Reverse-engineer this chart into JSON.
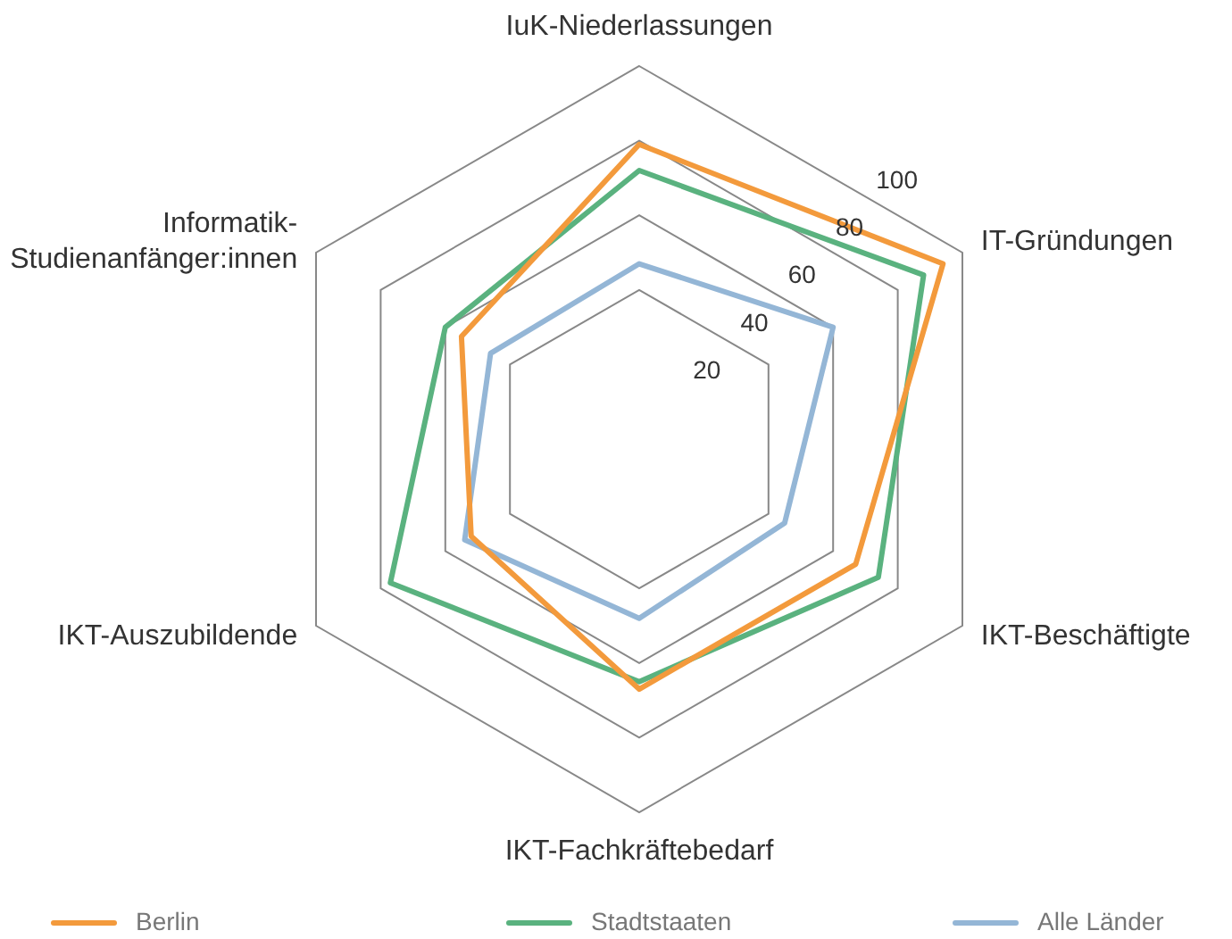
{
  "chart_data": {
    "type": "radar",
    "categories": [
      "IuK-Niederlassungen",
      "IT-Gründungen",
      "IKT-Beschäftigte",
      "IKT-Fachkräftebedarf",
      "IKT-Auszubildende",
      "Informatik-Studienanfänger:innen"
    ],
    "series": [
      {
        "name": "Berlin",
        "color": "#f39a3c",
        "values": [
          79,
          94,
          67,
          67,
          52,
          55
        ]
      },
      {
        "name": "Stadtstaaten",
        "color": "#5ab27f",
        "values": [
          72,
          88,
          74,
          65,
          77,
          60
        ]
      },
      {
        "name": "Alle Länder",
        "color": "#94b6d6",
        "values": [
          47,
          60,
          45,
          48,
          54,
          46
        ]
      }
    ],
    "ylim": [
      0,
      100
    ],
    "yticks": [
      20,
      40,
      60,
      80,
      100
    ],
    "grid": true,
    "legend": "bottom",
    "marker": "none",
    "line_style": "solid"
  }
}
